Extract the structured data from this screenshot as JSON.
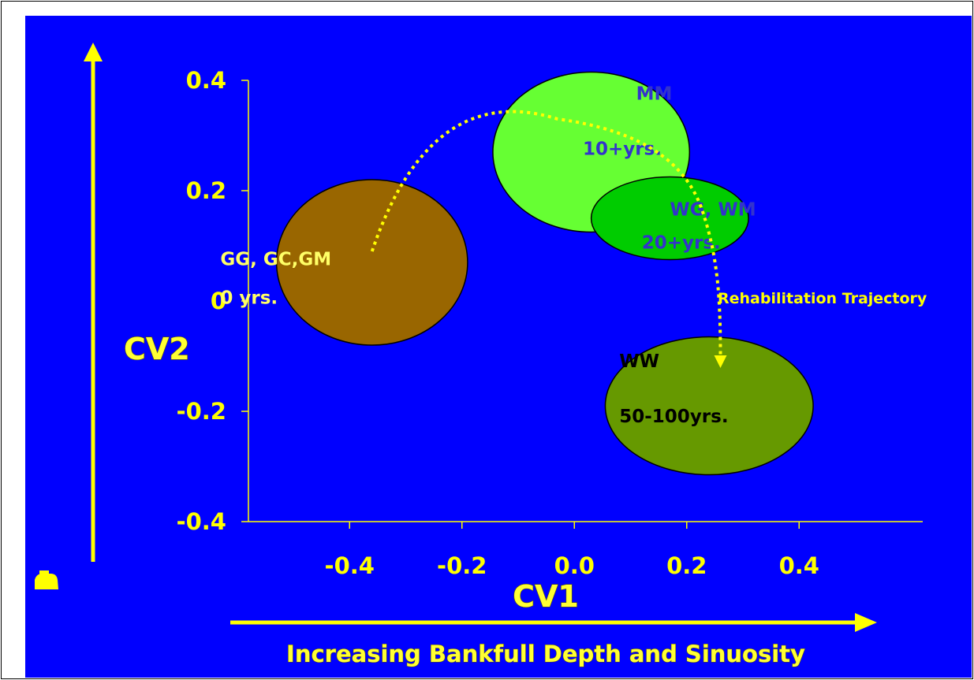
{
  "colors": {
    "background": "#0000ff",
    "axis": "#ffff00",
    "tick_text": "#ffff00",
    "trajectory": "#ffff00"
  },
  "icons": {
    "corner_glyph": "small-yellow-icon"
  },
  "chart_data": {
    "type": "scatter",
    "xlabel": "CV1",
    "ylabel": "CV2",
    "caption": "Increasing Bankfull Depth and Sinuosity",
    "xlim": [
      -0.58,
      0.62
    ],
    "ylim": [
      -0.4,
      0.4
    ],
    "x_ticks": [
      -0.4,
      -0.2,
      0.0,
      0.2,
      0.4
    ],
    "x_tick_labels": [
      "-0.4",
      "-0.2",
      "0.0",
      "0.2",
      "0.4"
    ],
    "y_ticks": [
      0.4,
      0.2,
      0,
      -0.2,
      -0.4
    ],
    "y_tick_labels": [
      "0.4",
      "0.2",
      "0",
      "-0.2",
      "-0.4"
    ],
    "grid": false,
    "groups": [
      {
        "label": "GG, GC,GM",
        "sublabel": "0 yrs.",
        "cx": -0.36,
        "cy": 0.07,
        "rx": 0.17,
        "ry": 0.15,
        "fill": "#996600",
        "text_color": "#ffff66"
      },
      {
        "label": "MM",
        "sublabel": "10+yrs.",
        "cx": 0.03,
        "cy": 0.27,
        "rx": 0.175,
        "ry": 0.145,
        "fill": "#66ff33",
        "text_color": "#3333cc"
      },
      {
        "label": "WG, WM",
        "sublabel": "20+yrs.",
        "cx": 0.17,
        "cy": 0.15,
        "rx": 0.14,
        "ry": 0.075,
        "fill": "#00cc00",
        "text_color": "#3333cc"
      },
      {
        "label": "WW",
        "sublabel": "50-100yrs.",
        "cx": 0.24,
        "cy": -0.19,
        "rx": 0.185,
        "ry": 0.125,
        "fill": "#669900",
        "text_color": "#000000"
      }
    ],
    "trajectory": {
      "label": "Rehabilitation Trajectory",
      "points": [
        [
          -0.36,
          0.09
        ],
        [
          -0.03,
          0.33
        ],
        [
          0.2,
          0.22
        ],
        [
          0.26,
          -0.11
        ]
      ]
    }
  }
}
